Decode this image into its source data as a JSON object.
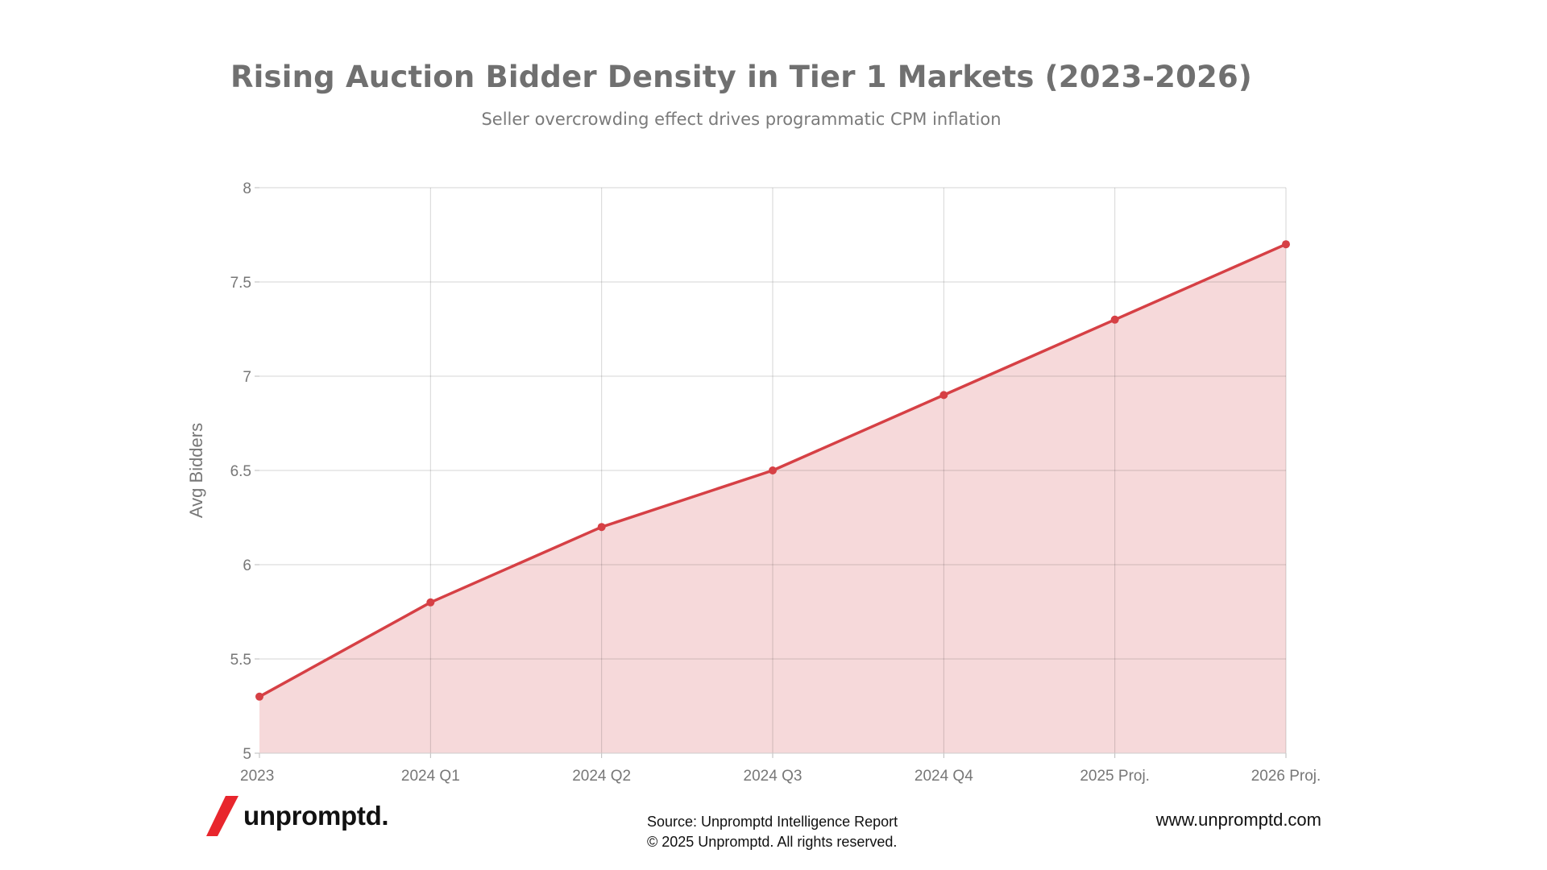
{
  "header": {
    "title": "Rising Auction Bidder Density in Tier 1 Markets (2023-2026)",
    "subtitle": "Seller overcrowding effect drives programmatic CPM inflation"
  },
  "chart_data": {
    "type": "area",
    "categories": [
      "2023",
      "2024 Q1",
      "2024 Q2",
      "2024 Q3",
      "2024 Q4",
      "2025 Proj.",
      "2026 Proj."
    ],
    "values": [
      5.3,
      5.8,
      6.2,
      6.5,
      6.9,
      7.3,
      7.7
    ],
    "ylabel": "Avg Bidders",
    "xlabel": "",
    "ylim": [
      5,
      8
    ],
    "yticks": [
      "5",
      "5.5",
      "6",
      "6.5",
      "7",
      "7.5",
      "8"
    ],
    "grid": true,
    "line_color": "#d64045",
    "fill_color": "#f6d9da"
  },
  "footer": {
    "brand": "unpromptd.",
    "source_line1": "Source: Unpromptd Intelligence Report",
    "source_line2": "© 2025 Unpromptd. All rights reserved.",
    "url": "www.unpromptd.com",
    "brand_color": "#e8262d"
  }
}
